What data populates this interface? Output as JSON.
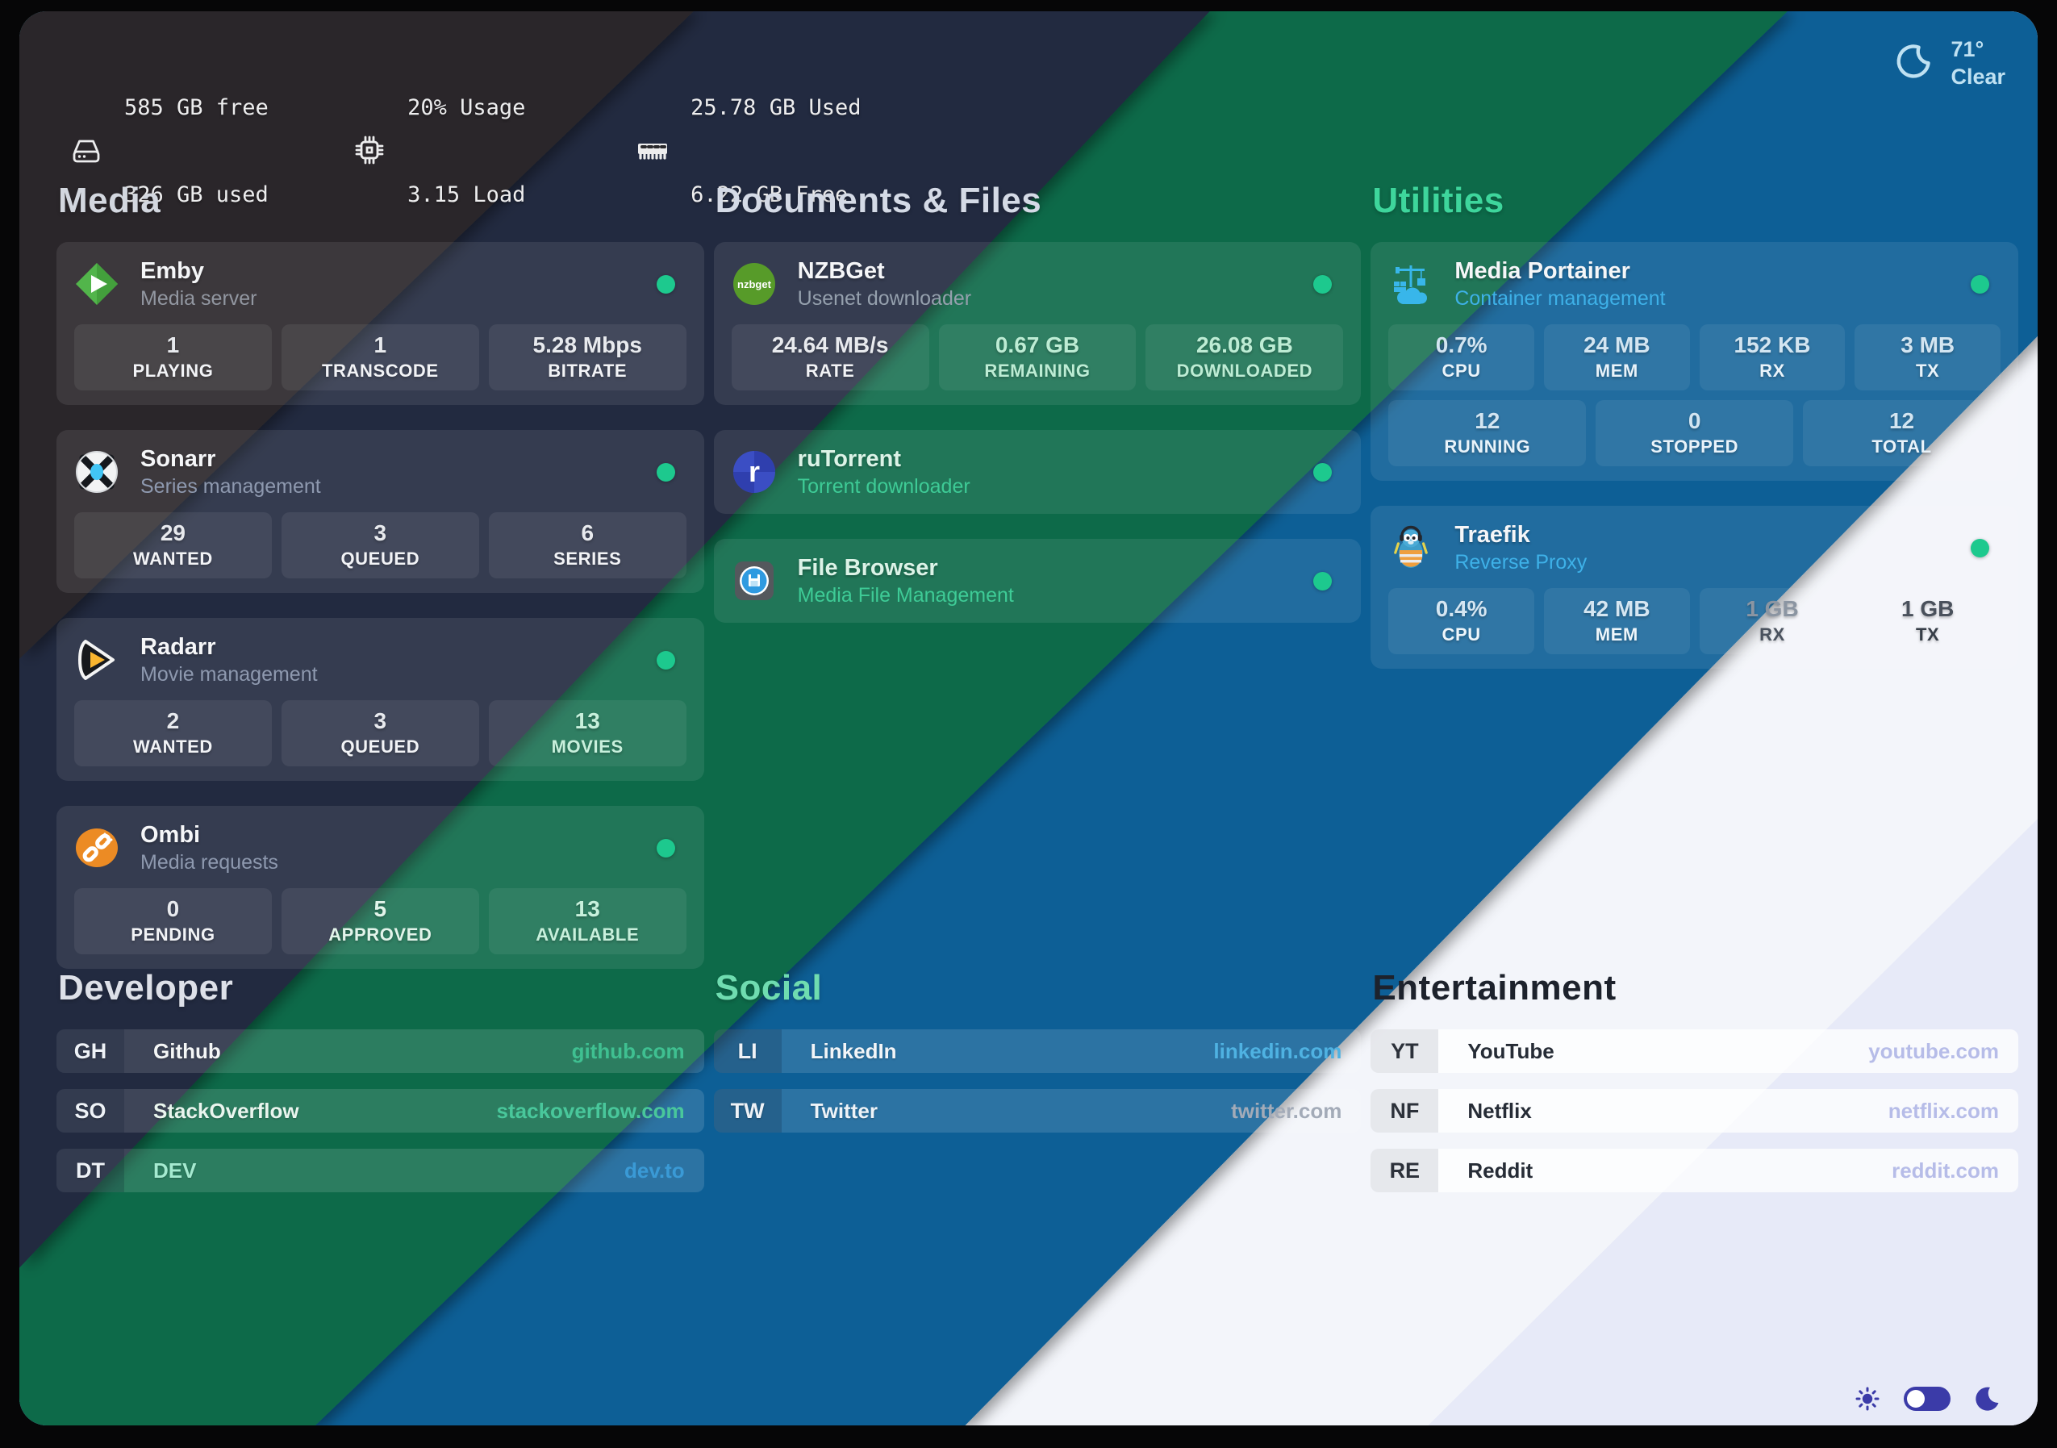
{
  "top_bar": {
    "disk": {
      "icon": "disk-icon",
      "line1": "585 GB free",
      "line2": "326 GB used"
    },
    "cpu": {
      "icon": "cpu-icon",
      "line1": "20% Usage",
      "line2": "3.15 Load"
    },
    "memory": {
      "icon": "ram-icon",
      "line1": "25.78 GB Used",
      "line2": "6.22 GB Free"
    },
    "weather": {
      "icon": "weather-moon-icon",
      "temperature": "71°",
      "condition": "Clear"
    }
  },
  "sections": [
    {
      "id": "media",
      "title": "Media",
      "apps": [
        {
          "id": "emby",
          "name": "Emby",
          "subtitle": "Media server",
          "icon": "emby-logo-icon",
          "online": true,
          "stat_rows": [
            [
              {
                "value": "1",
                "label": "PLAYING"
              },
              {
                "value": "1",
                "label": "TRANSCODE"
              },
              {
                "value": "5.28 Mbps",
                "label": "BITRATE"
              }
            ]
          ]
        },
        {
          "id": "sonarr",
          "name": "Sonarr",
          "subtitle": "Series management",
          "icon": "sonarr-logo-icon",
          "online": true,
          "stat_rows": [
            [
              {
                "value": "29",
                "label": "WANTED"
              },
              {
                "value": "3",
                "label": "QUEUED"
              },
              {
                "value": "6",
                "label": "SERIES"
              }
            ]
          ]
        },
        {
          "id": "radarr",
          "name": "Radarr",
          "subtitle": "Movie management",
          "icon": "radarr-logo-icon",
          "online": true,
          "stat_rows": [
            [
              {
                "value": "2",
                "label": "WANTED"
              },
              {
                "value": "3",
                "label": "QUEUED"
              },
              {
                "value": "13",
                "label": "MOVIES"
              }
            ]
          ]
        },
        {
          "id": "ombi",
          "name": "Ombi",
          "subtitle": "Media requests",
          "icon": "ombi-logo-icon",
          "online": true,
          "stat_rows": [
            [
              {
                "value": "0",
                "label": "PENDING"
              },
              {
                "value": "5",
                "label": "APPROVED"
              },
              {
                "value": "13",
                "label": "AVAILABLE"
              }
            ]
          ]
        }
      ]
    },
    {
      "id": "documents",
      "title": "Documents & Files",
      "apps": [
        {
          "id": "nzbget",
          "name": "NZBGet",
          "subtitle": "Usenet downloader",
          "icon": "nzbget-logo-icon",
          "online": true,
          "stat_rows": [
            [
              {
                "value": "24.64 MB/s",
                "label": "RATE"
              },
              {
                "value": "0.67 GB",
                "label": "REMAINING"
              },
              {
                "value": "26.08 GB",
                "label": "DOWNLOADED"
              }
            ]
          ]
        },
        {
          "id": "rutorrent",
          "name": "ruTorrent",
          "subtitle": "Torrent downloader",
          "icon": "rutorrent-logo-icon",
          "online": true,
          "stat_rows": []
        },
        {
          "id": "filebrowser",
          "name": "File Browser",
          "subtitle": "Media File Management",
          "icon": "filebrowser-logo-icon",
          "online": true,
          "stat_rows": []
        }
      ]
    },
    {
      "id": "utilities",
      "title": "Utilities",
      "apps": [
        {
          "id": "portainer",
          "name": "Media Portainer",
          "subtitle": "Container management",
          "icon": "portainer-logo-icon",
          "online": true,
          "stat_rows": [
            [
              {
                "value": "0.7%",
                "label": "CPU"
              },
              {
                "value": "24 MB",
                "label": "MEM"
              },
              {
                "value": "152 KB",
                "label": "RX"
              },
              {
                "value": "3 MB",
                "label": "TX"
              }
            ],
            [
              {
                "value": "12",
                "label": "RUNNING"
              },
              {
                "value": "0",
                "label": "STOPPED"
              },
              {
                "value": "12",
                "label": "TOTAL"
              }
            ]
          ]
        },
        {
          "id": "traefik",
          "name": "Traefik",
          "subtitle": "Reverse Proxy",
          "icon": "traefik-logo-icon",
          "online": true,
          "stat_rows": [
            [
              {
                "value": "0.4%",
                "label": "CPU"
              },
              {
                "value": "42 MB",
                "label": "MEM"
              },
              {
                "value": "1 GB",
                "label": "RX"
              },
              {
                "value": "1 GB",
                "label": "TX"
              }
            ]
          ]
        }
      ]
    },
    {
      "id": "developer",
      "title": "Developer",
      "links": [
        {
          "id": "github",
          "tag": "GH",
          "label": "Github",
          "url": "github.com",
          "url_color": "#3fc091",
          "label_color": "#f4f6f6"
        },
        {
          "id": "stackoverflow",
          "tag": "SO",
          "label": "StackOverflow",
          "url": "stackoverflow.com",
          "url_color": "#49c79b",
          "label_color": "#e9f5ee"
        },
        {
          "id": "dev",
          "tag": "DT",
          "label": "DEV",
          "url": "dev.to",
          "url_color": "#3a9ad6",
          "label_color": "#a5ead0"
        }
      ]
    },
    {
      "id": "social",
      "title": "Social",
      "links": [
        {
          "id": "linkedin",
          "tag": "LI",
          "label": "LinkedIn",
          "url": "linkedin.com",
          "url_color": "#4fb2e2",
          "label_color": "#f2f5f8"
        },
        {
          "id": "twitter",
          "tag": "TW",
          "label": "Twitter",
          "url": "twitter.com",
          "url_color": "#a3abb8",
          "label_color": "#eef3f8"
        }
      ]
    },
    {
      "id": "entertainment",
      "title": "Entertainment",
      "links": [
        {
          "id": "youtube",
          "tag": "YT",
          "label": "YouTube",
          "url": "youtube.com",
          "url_color": "#b6bce8",
          "label_color": "#262c36"
        },
        {
          "id": "netflix",
          "tag": "NF",
          "label": "Netflix",
          "url": "netflix.com",
          "url_color": "#b6bce8",
          "label_color": "#262c36"
        },
        {
          "id": "reddit",
          "tag": "RE",
          "label": "Reddit",
          "url": "reddit.com",
          "url_color": "#b6bce8",
          "label_color": "#262c36"
        }
      ]
    }
  ],
  "footer": {
    "icons": [
      "sun-icon",
      "theme-toggle",
      "moon-icon"
    ],
    "toggle_state": "left"
  },
  "colors": {
    "band_charcoal": "#29282b",
    "band_navy": "#202a40",
    "band_green": "#0d6b4a",
    "band_blue": "#0d5f96",
    "band_white": "#f3f5fa",
    "band_lavender": "#e7eaf8",
    "status_online": "#1dc98e",
    "footer_accent": "#3b3ba8"
  }
}
